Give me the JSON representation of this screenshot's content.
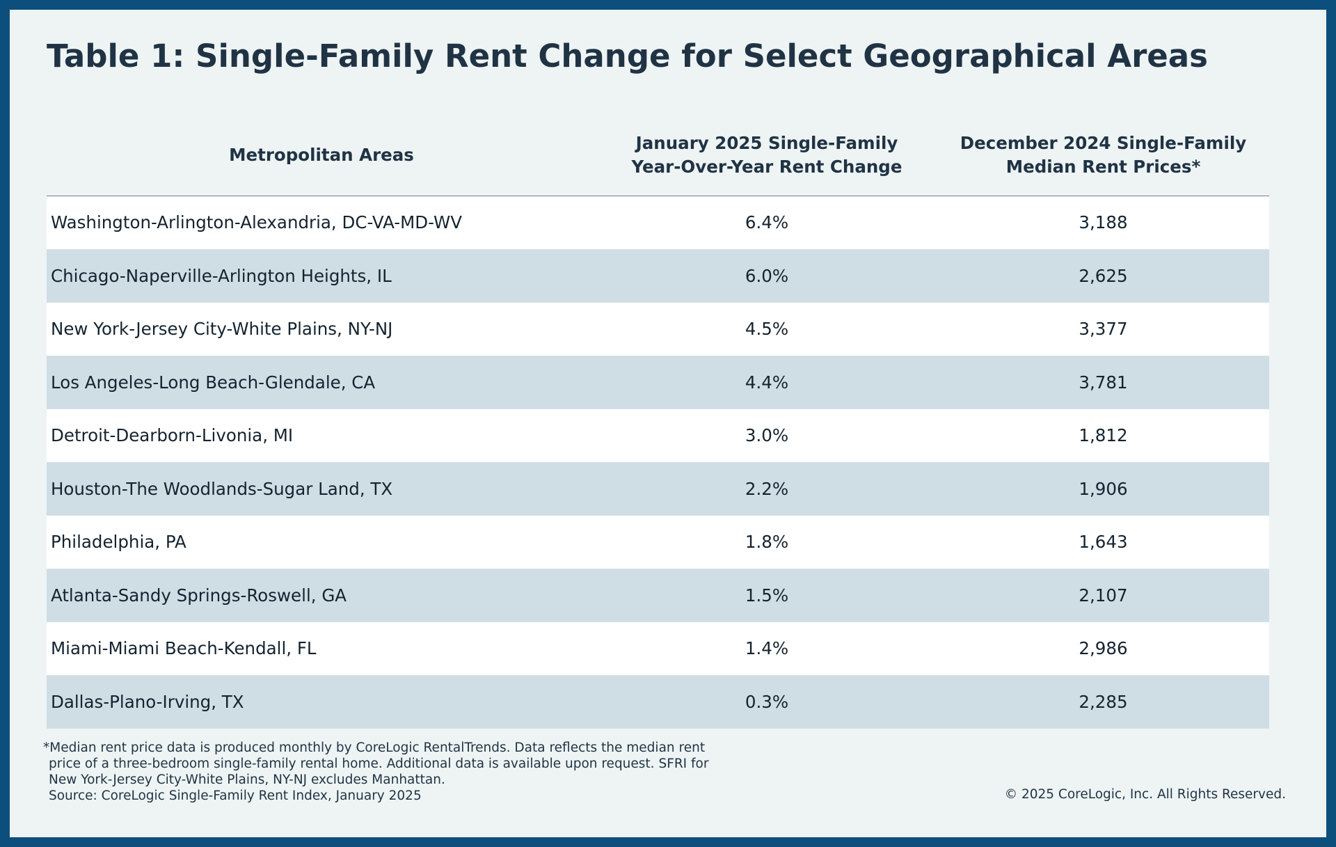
{
  "title": "Table 1: Single-Family Rent Change for Select Geographical Areas",
  "colors": {
    "frame": "#0d4f7c",
    "background": "#eef3f4",
    "row_alt": "#cfdde5",
    "text": "#1f3344"
  },
  "chart_data": {
    "type": "table",
    "title": "Table 1: Single-Family Rent Change for Select Geographical Areas",
    "columns": [
      "Metropolitan Areas",
      "January 2025 Single-Family\nYear-Over-Year Rent Change",
      "December 2024 Single-Family\nMedian Rent Prices*"
    ],
    "rows": [
      [
        "Washington-Arlington-Alexandria, DC-VA-MD-WV",
        "6.4%",
        "3,188"
      ],
      [
        "Chicago-Naperville-Arlington Heights, IL",
        "6.0%",
        "2,625"
      ],
      [
        "New York-Jersey City-White Plains, NY-NJ",
        "4.5%",
        "3,377"
      ],
      [
        "Los Angeles-Long Beach-Glendale, CA",
        "4.4%",
        "3,781"
      ],
      [
        "Detroit-Dearborn-Livonia, MI",
        "3.0%",
        "1,812"
      ],
      [
        "Houston-The Woodlands-Sugar Land, TX",
        "2.2%",
        "1,906"
      ],
      [
        "Philadelphia, PA",
        "1.8%",
        "1,643"
      ],
      [
        "Atlanta-Sandy Springs-Roswell, GA",
        "1.5%",
        "2,107"
      ],
      [
        "Miami-Miami Beach-Kendall, FL",
        "1.4%",
        "2,986"
      ],
      [
        "Dallas-Plano-Irving, TX",
        "0.3%",
        "2,285"
      ]
    ]
  },
  "footnote": {
    "lines": [
      "*Median rent price data is produced monthly by CoreLogic RentalTrends. Data reflects the median rent",
      "price of a three-bedroom single-family rental home. Additional data is available upon request. SFRI for",
      "New York-Jersey City-White Plains, NY-NJ excludes Manhattan.",
      "Source: CoreLogic Single-Family Rent Index, January 2025"
    ]
  },
  "copyright": "© 2025 CoreLogic, Inc. All Rights Reserved."
}
